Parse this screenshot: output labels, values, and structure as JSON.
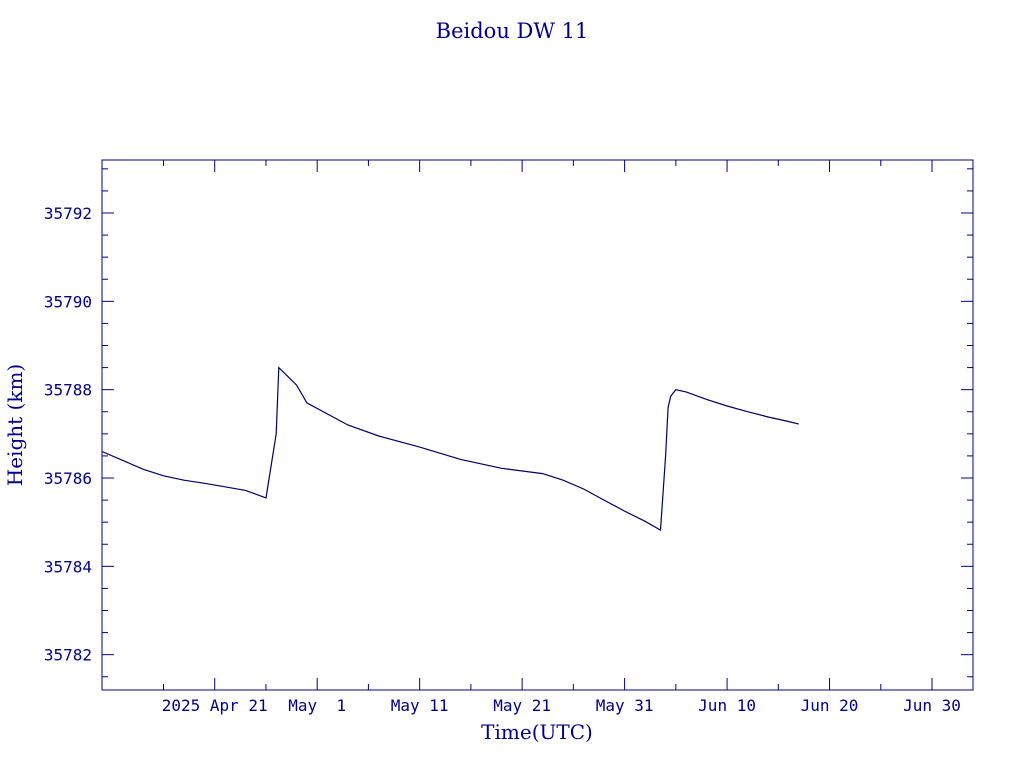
{
  "colors": {
    "axis": "#00008b",
    "line": "#000066",
    "background": "#ffffff"
  },
  "chart_data": {
    "type": "line",
    "title": "Beidou DW 11",
    "xlabel": "Time(UTC)",
    "ylabel": "Height (km)",
    "xlim": [
      "2025-04-10",
      "2025-07-04"
    ],
    "ylim": [
      35781.2,
      35793.2
    ],
    "x_ticks": [
      {
        "date": "2025-04-21",
        "label": "2025 Apr 21"
      },
      {
        "date": "2025-05-01",
        "label": "May  1"
      },
      {
        "date": "2025-05-11",
        "label": "May 11"
      },
      {
        "date": "2025-05-21",
        "label": "May 21"
      },
      {
        "date": "2025-05-31",
        "label": "May 31"
      },
      {
        "date": "2025-06-10",
        "label": "Jun 10"
      },
      {
        "date": "2025-06-20",
        "label": "Jun 20"
      },
      {
        "date": "2025-06-30",
        "label": "Jun 30"
      }
    ],
    "x_minor_ticks": [
      "2025-04-16",
      "2025-04-26",
      "2025-05-06",
      "2025-05-16",
      "2025-05-26",
      "2025-06-05",
      "2025-06-15",
      "2025-06-25"
    ],
    "y_ticks": [
      35782,
      35784,
      35786,
      35788,
      35790,
      35792
    ],
    "y_ticklabels": [
      "35782",
      "35784",
      "35786",
      "35788",
      "35790",
      "35792"
    ],
    "grid": false,
    "series": [
      {
        "points": [
          [
            "2025-04-10",
            35786.6
          ],
          [
            "2025-04-12",
            35786.4
          ],
          [
            "2025-04-14",
            35786.2
          ],
          [
            "2025-04-16",
            35786.05
          ],
          [
            "2025-04-18",
            35785.95
          ],
          [
            "2025-04-20",
            35785.88
          ],
          [
            "2025-04-22",
            35785.8
          ],
          [
            "2025-04-24",
            35785.72
          ],
          [
            "2025-04-26",
            35785.55
          ],
          [
            "2025-04-27",
            35787.0
          ],
          [
            "2025-04-27T06:00",
            35788.5
          ],
          [
            "2025-04-29",
            35788.1
          ],
          [
            "2025-04-30",
            35787.7
          ],
          [
            "2025-05-04",
            35787.2
          ],
          [
            "2025-05-07",
            35786.95
          ],
          [
            "2025-05-11",
            35786.7
          ],
          [
            "2025-05-15",
            35786.42
          ],
          [
            "2025-05-19",
            35786.22
          ],
          [
            "2025-05-23",
            35786.1
          ],
          [
            "2025-05-25",
            35785.95
          ],
          [
            "2025-05-27",
            35785.75
          ],
          [
            "2025-05-29",
            35785.5
          ],
          [
            "2025-05-31",
            35785.25
          ],
          [
            "2025-06-02",
            35785.02
          ],
          [
            "2025-06-03T12:00",
            35784.82
          ],
          [
            "2025-06-04",
            35786.5
          ],
          [
            "2025-06-04T06:00",
            35787.6
          ],
          [
            "2025-06-04T12:00",
            35787.85
          ],
          [
            "2025-06-05",
            35788.0
          ],
          [
            "2025-06-06",
            35787.95
          ],
          [
            "2025-06-08",
            35787.78
          ],
          [
            "2025-06-10",
            35787.63
          ],
          [
            "2025-06-12",
            35787.5
          ],
          [
            "2025-06-14",
            35787.38
          ],
          [
            "2025-06-16",
            35787.28
          ],
          [
            "2025-06-17",
            35787.22
          ]
        ]
      }
    ]
  }
}
